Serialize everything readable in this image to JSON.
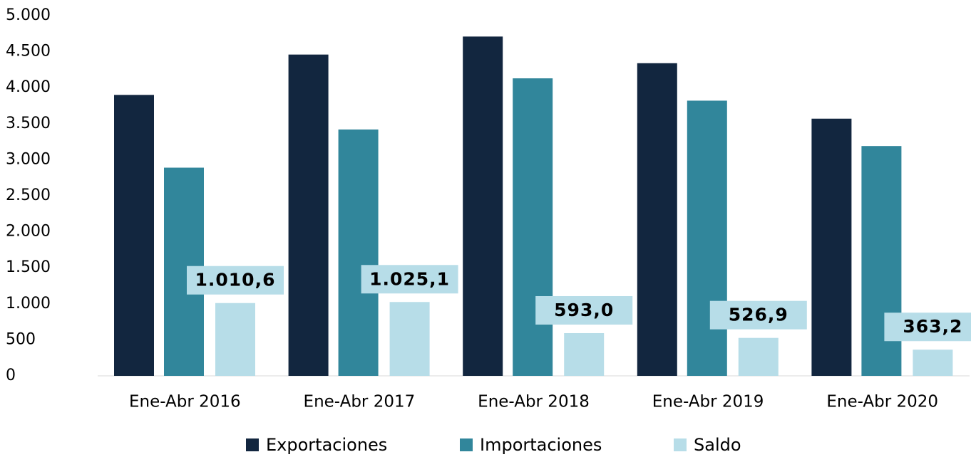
{
  "chart_data": {
    "type": "bar",
    "categories": [
      "Ene-Abr 2016",
      "Ene-Abr 2017",
      "Ene-Abr 2018",
      "Ene-Abr 2019",
      "Ene-Abr 2020"
    ],
    "series": [
      {
        "name": "Exportaciones",
        "color": "#12263f",
        "values": [
          3900,
          4460,
          4710,
          4340,
          3570
        ]
      },
      {
        "name": "Importaciones",
        "color": "#31869b",
        "values": [
          2890,
          3420,
          4130,
          3820,
          3190
        ]
      },
      {
        "name": "Saldo",
        "color": "#b7dde8",
        "values": [
          1010.6,
          1025.1,
          593.0,
          526.9,
          363.2
        ],
        "value_labels": [
          "1.010,6",
          "1.025,1",
          "593,0",
          "526,9",
          "363,2"
        ]
      }
    ],
    "ylim": [
      0,
      5000
    ],
    "yticks": [
      0,
      500,
      {
        "value": 1000,
        "label": "1.000"
      },
      {
        "value": 1500,
        "label": "1.500"
      },
      {
        "value": 2000,
        "label": "2.000"
      },
      {
        "value": 2500,
        "label": "2.500"
      },
      {
        "value": 3000,
        "label": "3.000"
      },
      {
        "value": 3500,
        "label": "3.500"
      },
      {
        "value": 4000,
        "label": "4.000"
      },
      {
        "value": 4500,
        "label": "4.500"
      },
      {
        "value": 5000,
        "label": "5.000"
      }
    ],
    "legend": "bottom"
  }
}
